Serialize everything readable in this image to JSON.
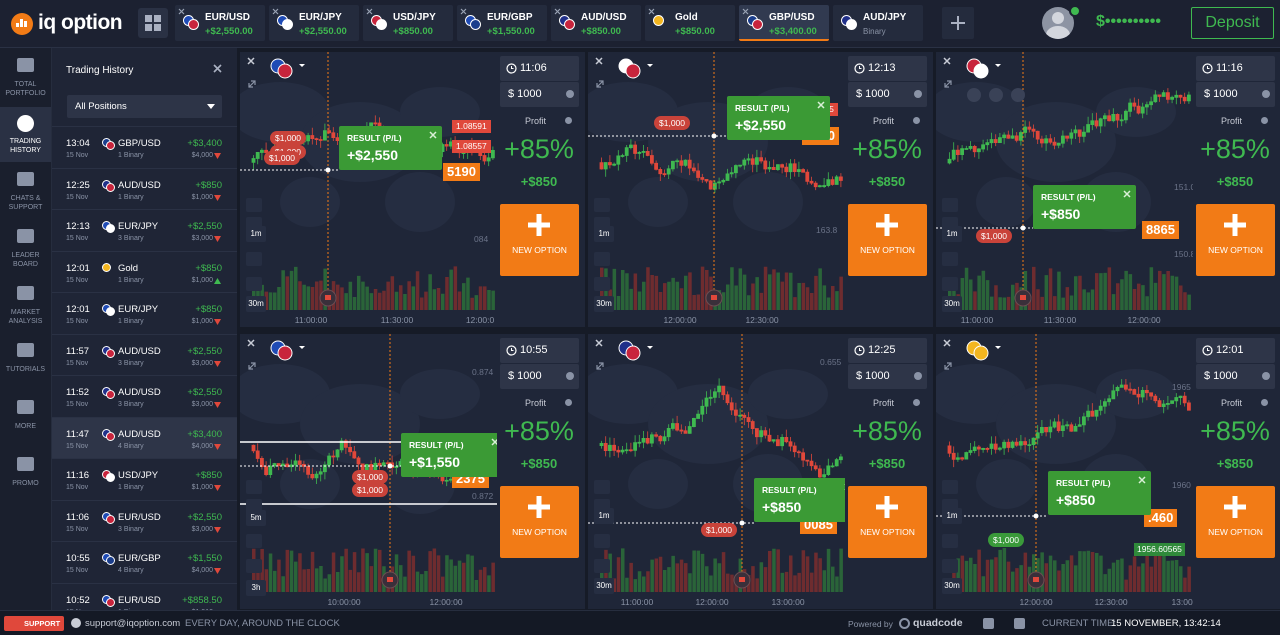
{
  "header": {
    "logo": "iq option",
    "tabs": [
      {
        "asset": "EUR/USD",
        "profit": "+$2,550.00"
      },
      {
        "asset": "EUR/JPY",
        "profit": "+$2,550.00"
      },
      {
        "asset": "USD/JPY",
        "profit": "+$850.00"
      },
      {
        "asset": "EUR/GBP",
        "profit": "+$1,550.00"
      },
      {
        "asset": "AUD/USD",
        "profit": "+$850.00"
      },
      {
        "asset": "Gold",
        "profit": "+$850.00"
      },
      {
        "asset": "GBP/USD",
        "profit": "+$3,400.00",
        "active": true
      },
      {
        "asset": "AUD/JPY",
        "type": "Binary"
      }
    ],
    "balance": "$••••••••••",
    "deposit": "Deposit"
  },
  "sidebar": [
    {
      "label": "TOTAL PORTFOLIO"
    },
    {
      "label": "TRADING HISTORY",
      "active": true
    },
    {
      "label": "CHATS & SUPPORT"
    },
    {
      "label": "LEADER BOARD"
    },
    {
      "label": "MARKET ANALYSIS"
    },
    {
      "label": "TUTORIALS"
    },
    {
      "label": "MORE"
    },
    {
      "label": "PROMO"
    }
  ],
  "history": {
    "title": "Trading History",
    "filter": "All Positions",
    "rows": [
      {
        "time": "13:04",
        "date": "15 Nov",
        "asset": "GBP/USD",
        "count": "1 Binary",
        "profit": "+$3,400",
        "amount": "$4,000",
        "direction": "down"
      },
      {
        "time": "12:25",
        "date": "15 Nov",
        "asset": "AUD/USD",
        "count": "1 Binary",
        "profit": "+$850",
        "amount": "$1,000",
        "direction": "down"
      },
      {
        "time": "12:13",
        "date": "15 Nov",
        "asset": "EUR/JPY",
        "count": "3 Binary",
        "profit": "+$2,550",
        "amount": "$3,000",
        "direction": "down"
      },
      {
        "time": "12:01",
        "date": "15 Nov",
        "asset": "Gold",
        "count": "1 Binary",
        "profit": "+$850",
        "amount": "$1,000",
        "direction": "up"
      },
      {
        "time": "12:01",
        "date": "15 Nov",
        "asset": "EUR/JPY",
        "count": "1 Binary",
        "profit": "+$850",
        "amount": "$1,000",
        "direction": "down"
      },
      {
        "time": "11:57",
        "date": "15 Nov",
        "asset": "AUD/USD",
        "count": "3 Binary",
        "profit": "+$2,550",
        "amount": "$3,000",
        "direction": "down"
      },
      {
        "time": "11:52",
        "date": "15 Nov",
        "asset": "AUD/USD",
        "count": "3 Binary",
        "profit": "+$2,550",
        "amount": "$3,000",
        "direction": "down"
      },
      {
        "time": "11:47",
        "date": "15 Nov",
        "asset": "AUD/USD",
        "count": "4 Binary",
        "profit": "+$3,400",
        "amount": "$4,000",
        "direction": "down",
        "active": true
      },
      {
        "time": "11:16",
        "date": "15 Nov",
        "asset": "USD/JPY",
        "count": "1 Binary",
        "profit": "+$850",
        "amount": "$1,000",
        "direction": "down"
      },
      {
        "time": "11:06",
        "date": "15 Nov",
        "asset": "EUR/USD",
        "count": "3 Binary",
        "profit": "+$2,550",
        "amount": "$3,000",
        "direction": "down"
      },
      {
        "time": "10:55",
        "date": "15 Nov",
        "asset": "EUR/GBP",
        "count": "4 Binary",
        "profit": "+$1,550",
        "amount": "$4,000",
        "direction": "down"
      },
      {
        "time": "10:52",
        "date": "15 Nov",
        "asset": "EUR/USD",
        "count": "1 Binary",
        "profit": "+$858.50",
        "amount": "$1,010",
        "direction": "down"
      }
    ]
  },
  "panels": [
    {
      "time": "11:06",
      "amount": "$ 1000",
      "profit_label": "Profit",
      "profit_pct": "+85%",
      "profit_value": "+$850",
      "button": "NEW OPTION",
      "result_label": "RESULT (P/L)",
      "result_value": "+$2,550",
      "timeframes": [
        "1m",
        "30m"
      ],
      "x_labels": [
        "11:00:00",
        "11:30:00",
        "12:00:0"
      ],
      "price_labels": [
        "1.08591",
        "1.08557",
        "5190",
        "084"
      ],
      "bubbles": [
        "$1,000",
        "$1,000",
        "$1,000"
      ]
    },
    {
      "time": "12:13",
      "amount": "$ 1000",
      "profit_label": "Profit",
      "profit_pct": "+85%",
      "profit_value": "+$850",
      "button": "NEW OPTION",
      "result_label": "RESULT (P/L)",
      "result_value": "+$2,550",
      "timeframes": [
        "1m",
        "30m"
      ],
      "x_labels": [
        "12:00:00",
        "12:30:00"
      ],
      "price_labels": [
        "163.922055",
        "8990",
        "163.8"
      ],
      "bubbles": [
        "$1,000"
      ]
    },
    {
      "time": "11:16",
      "amount": "$ 1000",
      "profit_label": "Profit",
      "profit_pct": "+85%",
      "profit_value": "+$850",
      "button": "NEW OPTION",
      "result_label": "RESULT (P/L)",
      "result_value": "+$850",
      "timeframes": [
        "1m",
        "30m"
      ],
      "x_labels": [
        "11:00:00",
        "11:30:00",
        "12:00:00"
      ],
      "price_labels": [
        "151.0",
        "8865",
        "150.8"
      ],
      "bubbles": [
        "$1,000"
      ]
    },
    {
      "time": "10:55",
      "amount": "$ 1000",
      "profit_label": "Profit",
      "profit_pct": "+85%",
      "profit_value": "+$850",
      "button": "NEW OPTION",
      "result_label": "RESULT (P/L)",
      "result_value": "+$1,550",
      "timeframes": [
        "5m",
        "3h"
      ],
      "x_labels": [
        "10:00:00",
        "12:00:00"
      ],
      "price_labels": [
        "0.874",
        "2375",
        "0.872"
      ],
      "bubbles": [
        "$1,000",
        "$1,000"
      ]
    },
    {
      "time": "12:25",
      "amount": "$ 1000",
      "profit_label": "Profit",
      "profit_pct": "+85%",
      "profit_value": "+$850",
      "button": "NEW OPTION",
      "result_label": "RESULT (P/L)",
      "result_value": "+$850",
      "timeframes": [
        "1m",
        "30m"
      ],
      "x_labels": [
        "11:00:00",
        "12:00:00",
        "13:00:00"
      ],
      "price_labels": [
        "0.655",
        "0085"
      ],
      "bubbles": [
        "$1,000"
      ]
    },
    {
      "time": "12:01",
      "amount": "$ 1000",
      "profit_label": "Profit",
      "profit_pct": "+85%",
      "profit_value": "+$850",
      "button": "NEW OPTION",
      "result_label": "RESULT (P/L)",
      "result_value": "+$850",
      "timeframes": [
        "1m",
        "30m"
      ],
      "x_labels": [
        "12:00:00",
        "12:30:00",
        "13:00:00"
      ],
      "price_labels": [
        "1965",
        "1960",
        ".460",
        "1956.60565"
      ],
      "bubbles": [
        "$1,000"
      ]
    }
  ],
  "footer": {
    "support": "SUPPORT",
    "email": "support@iqoption.com",
    "hours": "EVERY DAY, AROUND THE CLOCK",
    "powered": "Powered by",
    "brand": "quadcode",
    "time_label": "CURRENT TIME:",
    "time": "15 NOVEMBER, 13:42:14"
  }
}
